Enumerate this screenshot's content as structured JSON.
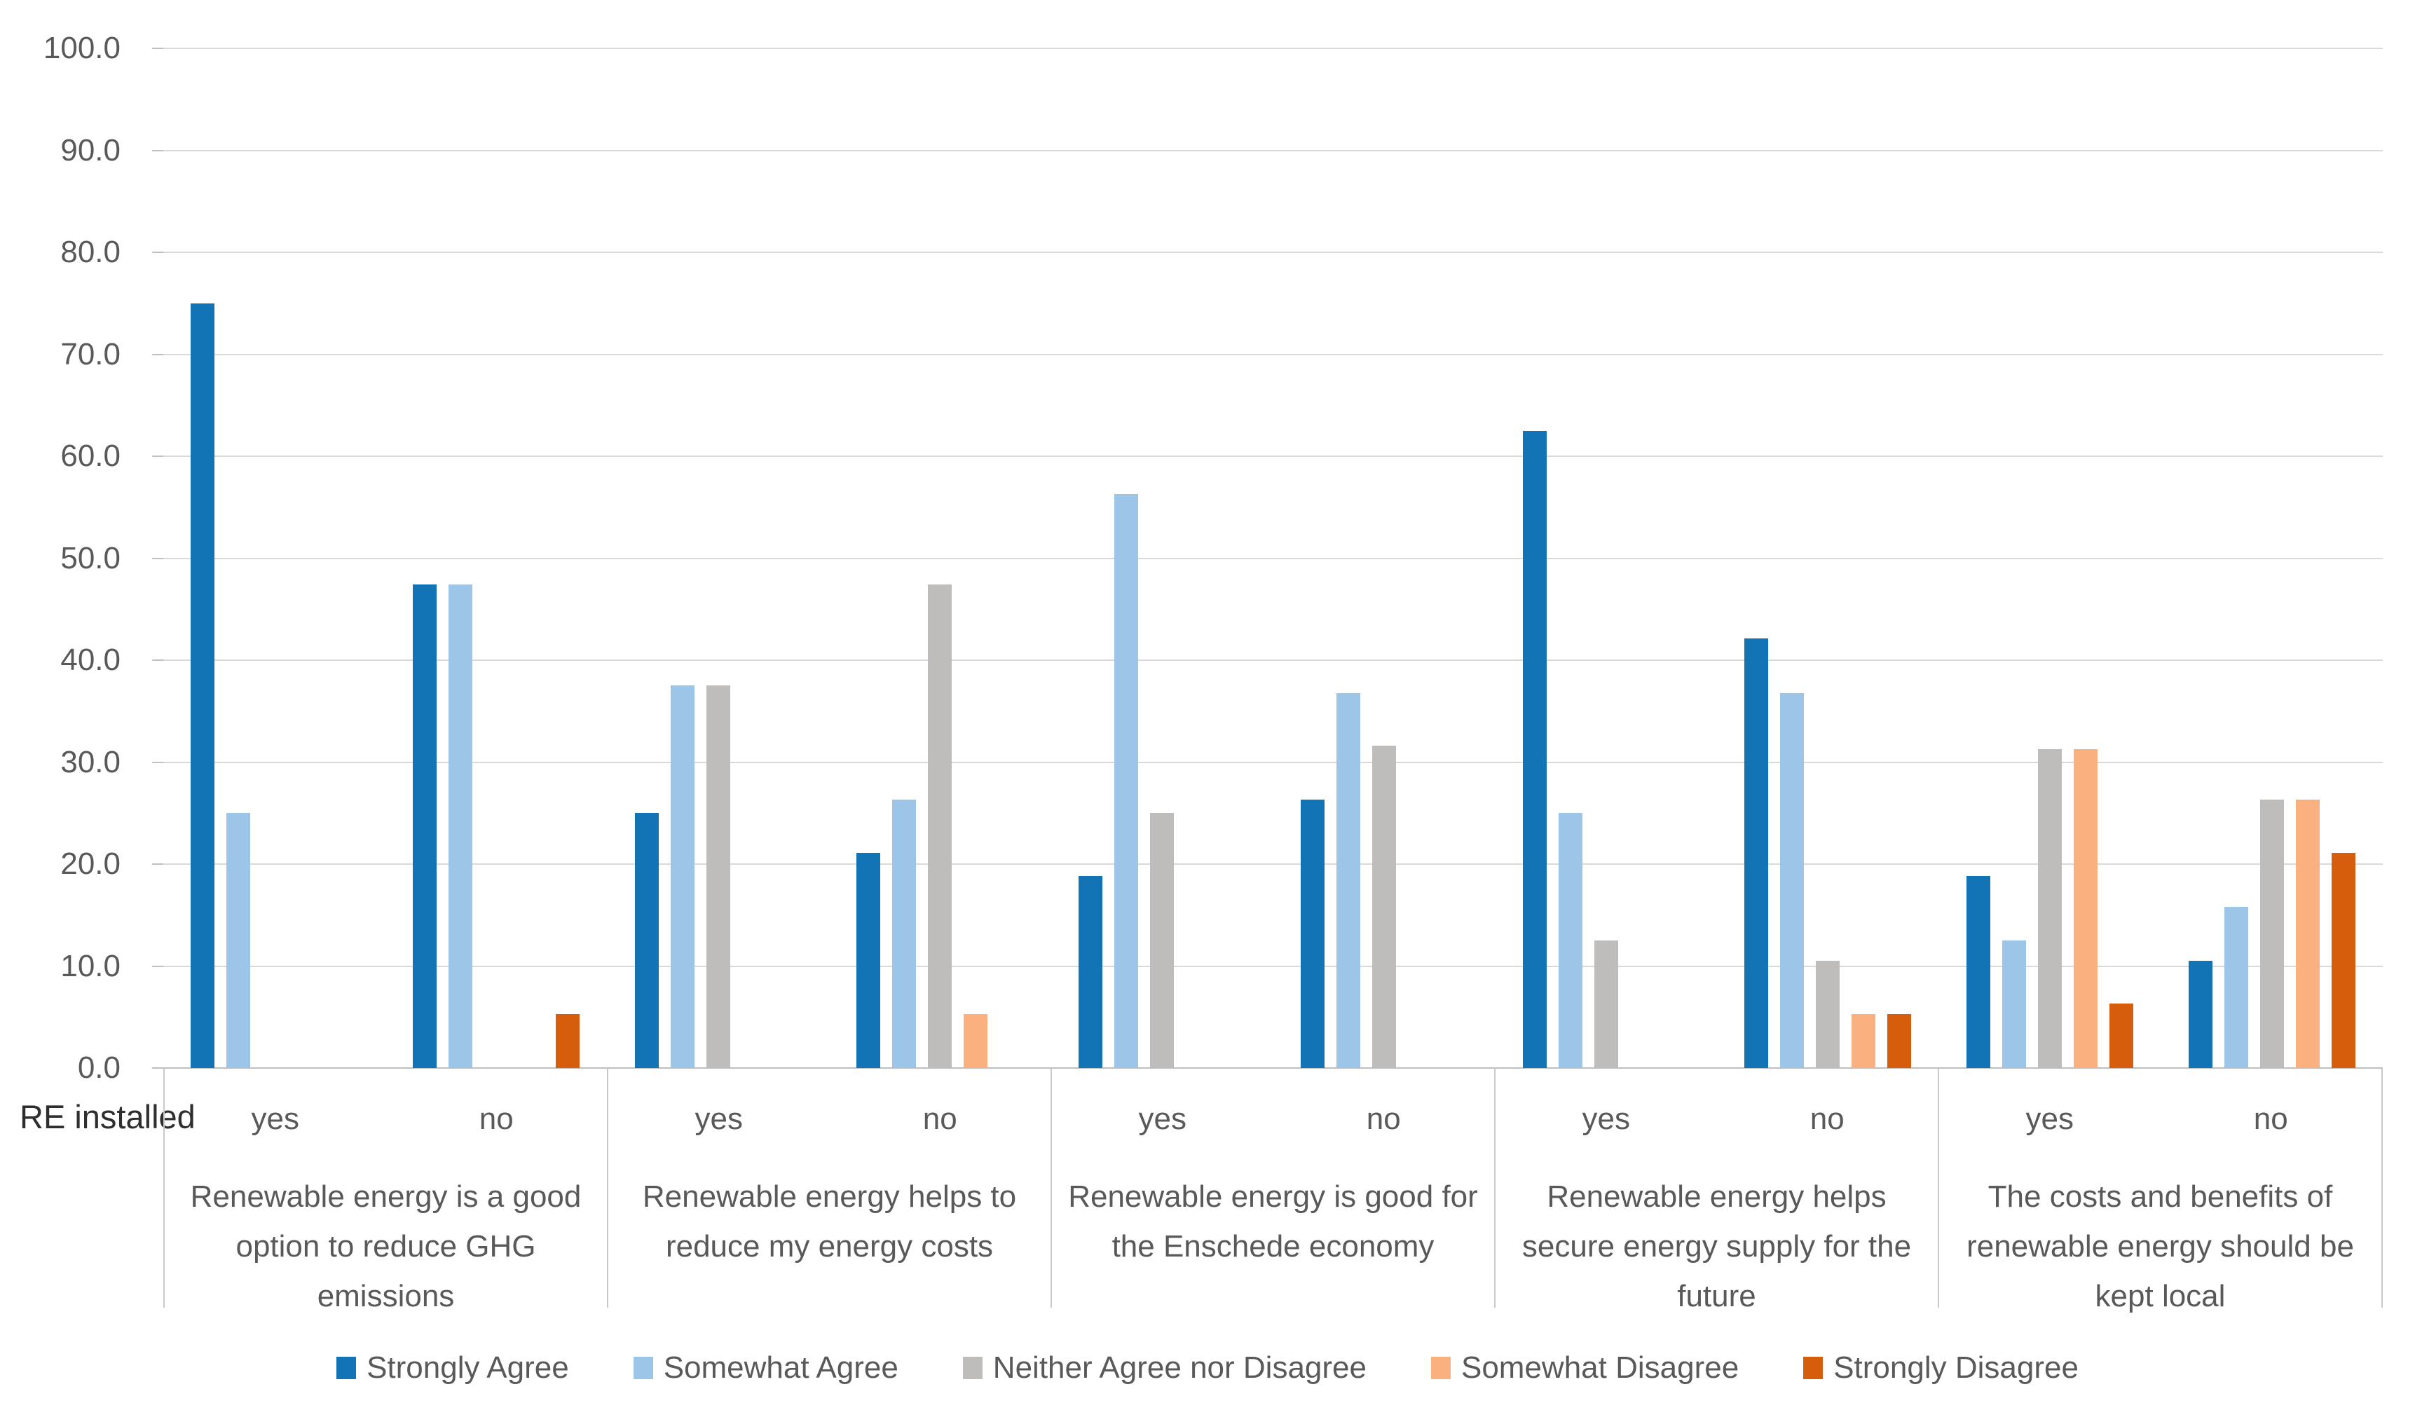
{
  "chart_data": {
    "type": "bar",
    "title": "",
    "row_label": "RE installed",
    "ylim": [
      0,
      100
    ],
    "y_step": 10,
    "grid": true,
    "legend_position": "bottom",
    "y_tick_labels": [
      "100.0",
      "90.0",
      "80.0",
      "70.0",
      "60.0",
      "50.0",
      "40.0",
      "30.0",
      "20.0",
      "10.0",
      "0.0"
    ],
    "series": [
      {
        "name": "Strongly Agree",
        "color": "#1374b5"
      },
      {
        "name": "Somewhat Agree",
        "color": "#9dc5e8"
      },
      {
        "name": "Neither Agree nor Disagree",
        "color": "#bfbdbb"
      },
      {
        "name": "Somewhat Disagree",
        "color": "#fab17f"
      },
      {
        "name": "Strongly Disagree",
        "color": "#d55d0b"
      }
    ],
    "groups": [
      {
        "question": "Renewable energy is a good option to reduce GHG emissions",
        "clusters": [
          {
            "label": "yes",
            "values": [
              75.0,
              25.0,
              0,
              0,
              0
            ]
          },
          {
            "label": "no",
            "values": [
              47.4,
              47.4,
              0,
              0,
              5.3
            ]
          }
        ]
      },
      {
        "question": "Renewable energy helps to reduce my energy costs",
        "clusters": [
          {
            "label": "yes",
            "values": [
              25.0,
              37.5,
              37.5,
              0,
              0
            ]
          },
          {
            "label": "no",
            "values": [
              21.1,
              26.3,
              47.4,
              5.3,
              0
            ]
          }
        ]
      },
      {
        "question": "Renewable energy is good for the Enschede economy",
        "clusters": [
          {
            "label": "yes",
            "values": [
              18.8,
              56.3,
              25.0,
              0,
              0
            ]
          },
          {
            "label": "no",
            "values": [
              26.3,
              36.8,
              31.6,
              0,
              0
            ]
          }
        ]
      },
      {
        "question": "Renewable energy helps secure energy supply for the future",
        "clusters": [
          {
            "label": "yes",
            "values": [
              62.5,
              25.0,
              12.5,
              0,
              0
            ]
          },
          {
            "label": "no",
            "values": [
              42.1,
              36.8,
              10.5,
              5.3,
              5.3
            ]
          }
        ]
      },
      {
        "question": "The costs and benefits of renewable energy should be kept local",
        "clusters": [
          {
            "label": "yes",
            "values": [
              18.8,
              12.5,
              31.3,
              31.3,
              6.3
            ]
          },
          {
            "label": "no",
            "values": [
              10.5,
              15.8,
              26.3,
              26.3,
              21.1
            ]
          }
        ]
      }
    ],
    "colors": {
      "gridline": "#d9d9d9",
      "axis_line": "#bfbfbf",
      "separator": "#c9c9c9",
      "tick_text": "#595959",
      "row_label_text": "#2e2e2e"
    }
  }
}
